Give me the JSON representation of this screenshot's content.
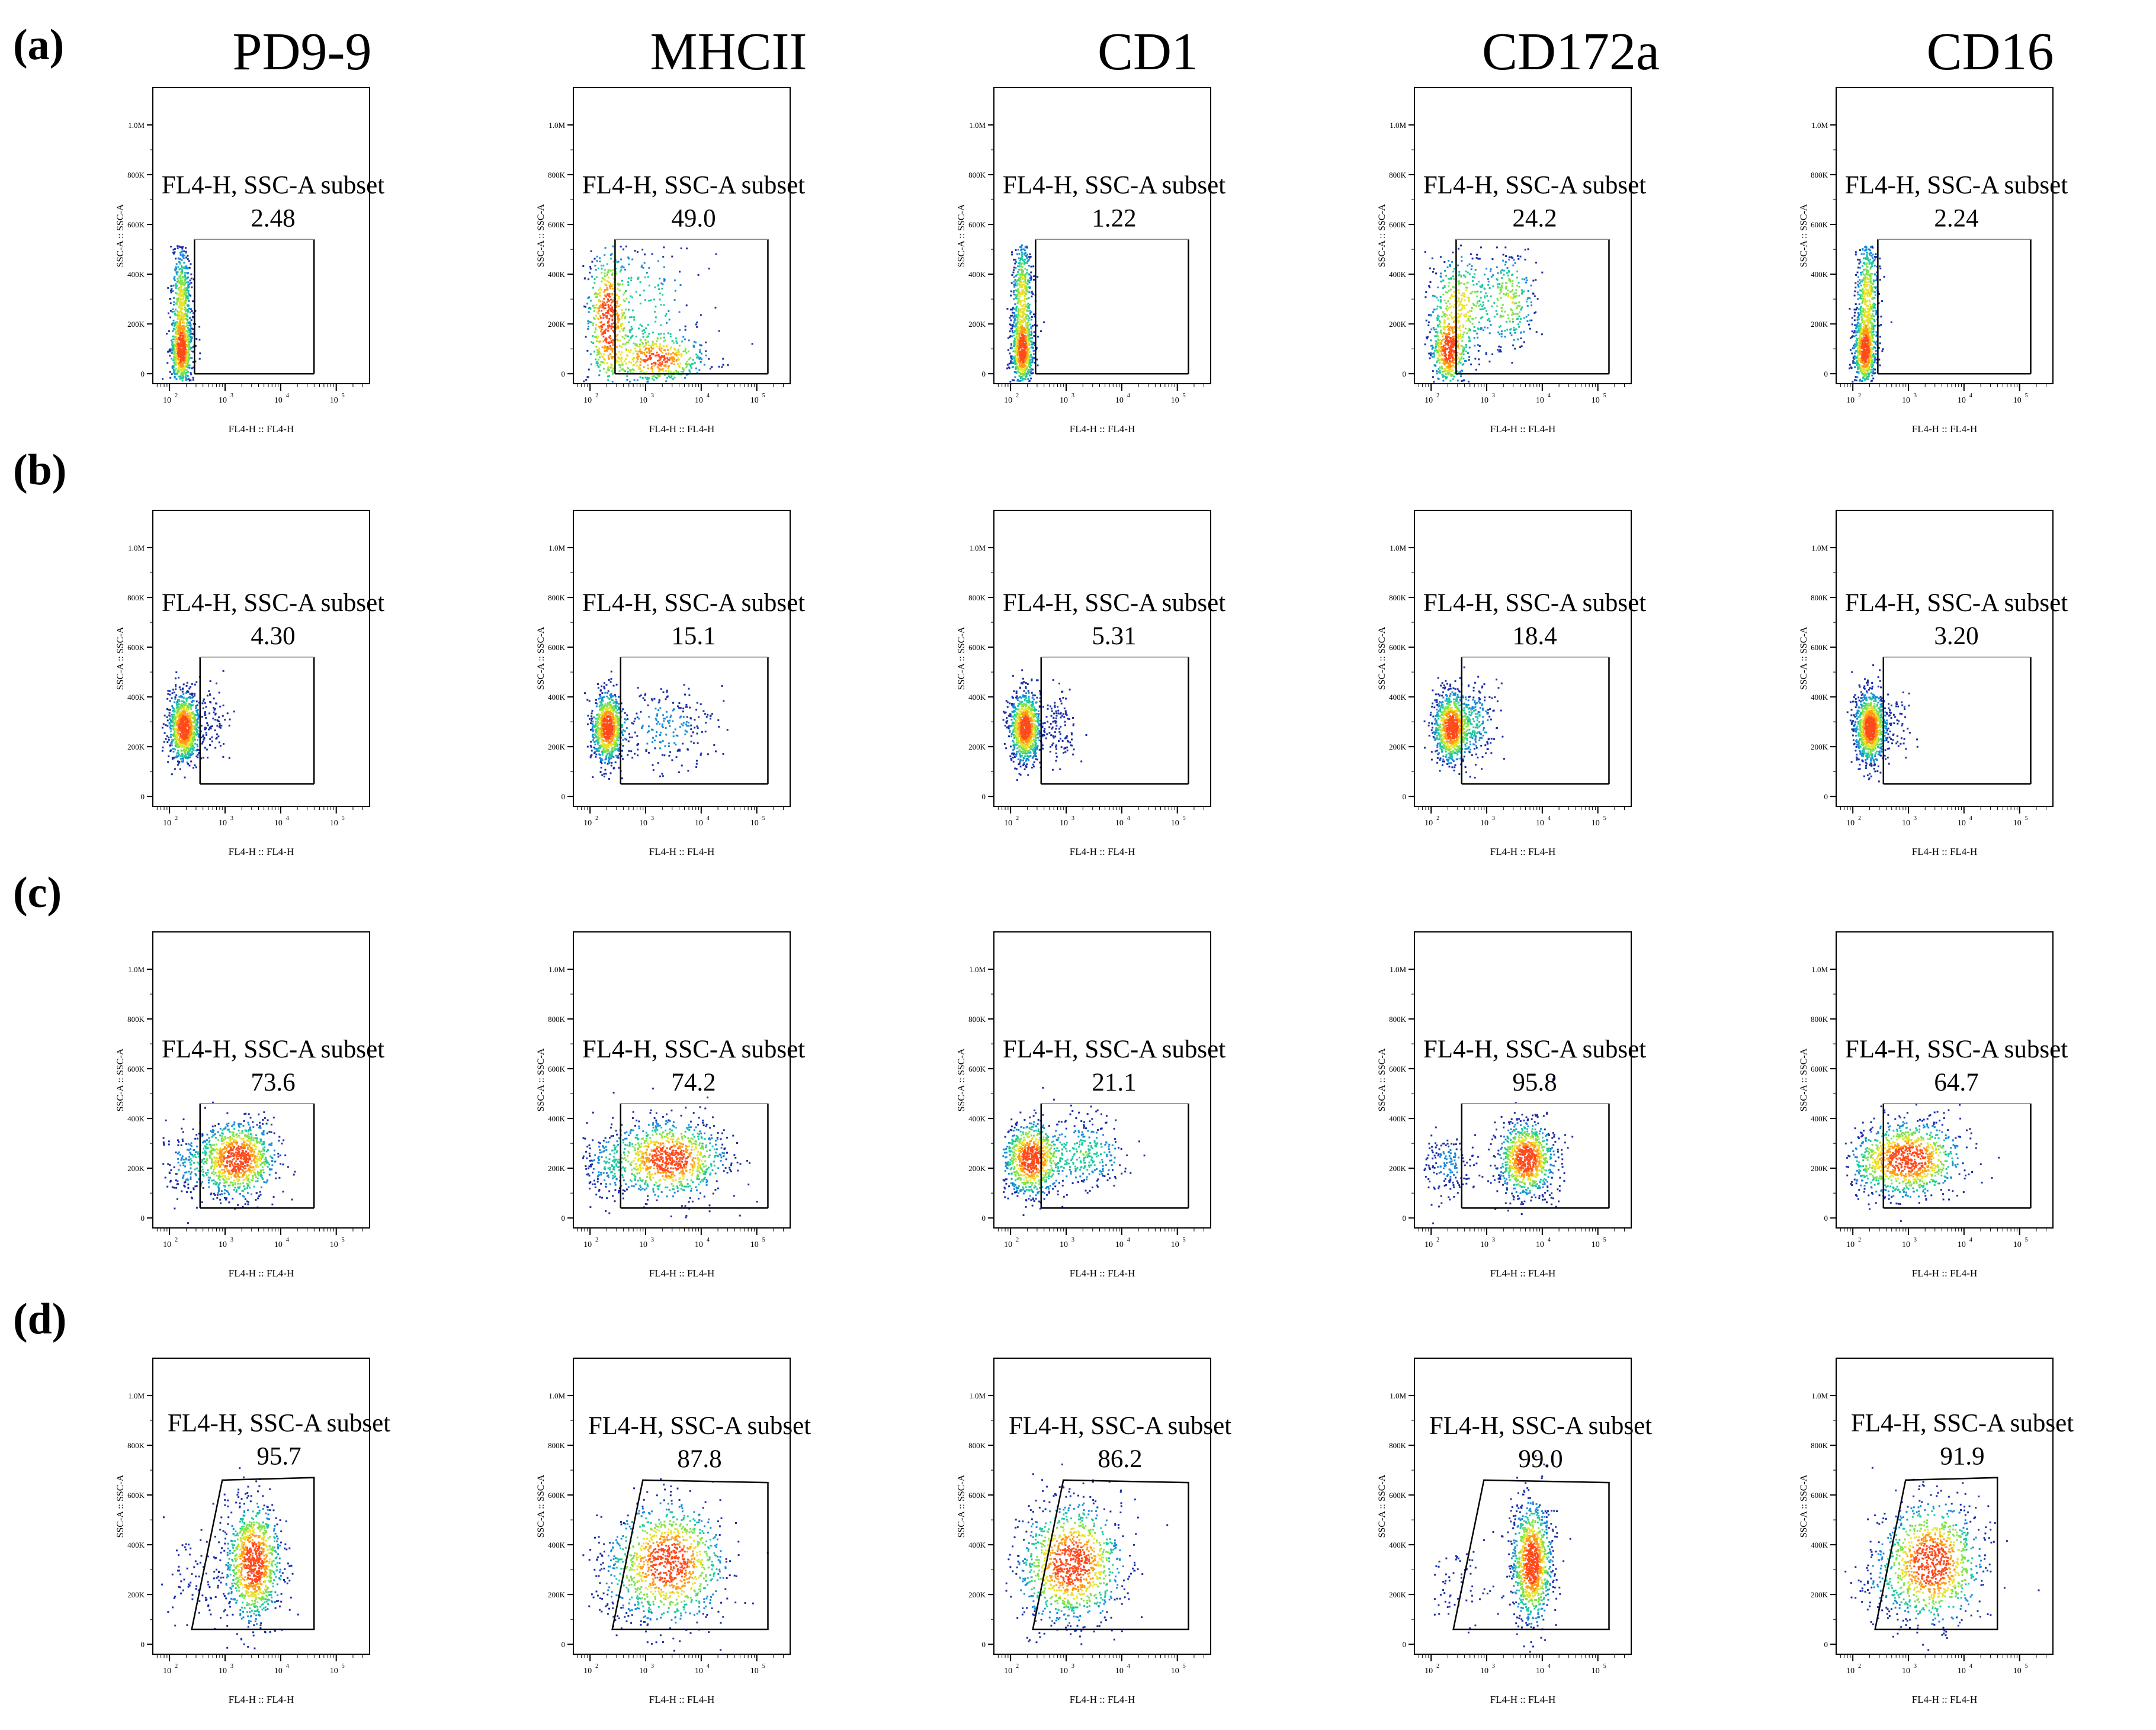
{
  "figure": {
    "markers": [
      "PD9-9",
      "MHCII",
      "CD1",
      "CD172a",
      "CD16"
    ],
    "row_labels": [
      "(a)",
      "(b)",
      "(c)",
      "(d)"
    ],
    "gate_label": "FL4-H, SSC-A subset",
    "x_axis_label": "FL4-H :: FL4-H",
    "y_axis_label": "SSC-A :: SSC-A",
    "x_ticks": [
      "10",
      "10",
      "10",
      "10"
    ],
    "x_tick_exponents": [
      "2",
      "3",
      "4",
      "5"
    ],
    "y_ticks": [
      "0",
      "200K",
      "400K",
      "600K",
      "800K",
      "1.0M"
    ]
  },
  "chart_data": [
    {
      "type": "scatter",
      "row": "(a)",
      "marker": "PD9-9",
      "gate_label": "FL4-H, SSC-A subset",
      "gate_value": "2.48",
      "xlabel": "FL4-H :: FL4-H",
      "ylabel": "SSC-A :: SSC-A",
      "xlim": [
        1.7,
        5.6
      ],
      "ylim": [
        -40000,
        1150000
      ],
      "gate": {
        "shape": "rect",
        "x": [
          2.45,
          4.6
        ],
        "y": [
          0,
          540000
        ]
      }
    },
    {
      "type": "scatter",
      "row": "(a)",
      "marker": "MHCII",
      "gate_label": "FL4-H, SSC-A subset",
      "gate_value": "49.0",
      "xlabel": "FL4-H :: FL4-H",
      "ylabel": "SSC-A :: SSC-A",
      "xlim": [
        1.7,
        5.6
      ],
      "ylim": [
        -40000,
        1150000
      ],
      "gate": {
        "shape": "rect",
        "x": [
          2.45,
          5.2
        ],
        "y": [
          0,
          540000
        ]
      }
    },
    {
      "type": "scatter",
      "row": "(a)",
      "marker": "CD1",
      "gate_label": "FL4-H, SSC-A subset",
      "gate_value": "1.22",
      "xlabel": "FL4-H :: FL4-H",
      "ylabel": "SSC-A :: SSC-A",
      "xlim": [
        1.7,
        5.6
      ],
      "ylim": [
        -40000,
        1150000
      ],
      "gate": {
        "shape": "rect",
        "x": [
          2.45,
          5.2
        ],
        "y": [
          0,
          540000
        ]
      }
    },
    {
      "type": "scatter",
      "row": "(a)",
      "marker": "CD172a",
      "gate_label": "FL4-H, SSC-A subset",
      "gate_value": "24.2",
      "xlabel": "FL4-H :: FL4-H",
      "ylabel": "SSC-A :: SSC-A",
      "xlim": [
        1.7,
        5.6
      ],
      "ylim": [
        -40000,
        1150000
      ],
      "gate": {
        "shape": "rect",
        "x": [
          2.45,
          5.2
        ],
        "y": [
          0,
          540000
        ]
      }
    },
    {
      "type": "scatter",
      "row": "(a)",
      "marker": "CD16",
      "gate_label": "FL4-H, SSC-A subset",
      "gate_value": "2.24",
      "xlabel": "FL4-H :: FL4-H",
      "ylabel": "SSC-A :: SSC-A",
      "xlim": [
        1.7,
        5.6
      ],
      "ylim": [
        -40000,
        1150000
      ],
      "gate": {
        "shape": "rect",
        "x": [
          2.45,
          5.2
        ],
        "y": [
          0,
          540000
        ]
      }
    },
    {
      "type": "scatter",
      "row": "(b)",
      "marker": "PD9-9",
      "gate_label": "FL4-H, SSC-A subset",
      "gate_value": "4.30",
      "xlabel": "FL4-H :: FL4-H",
      "ylabel": "SSC-A :: SSC-A",
      "xlim": [
        1.7,
        5.6
      ],
      "ylim": [
        -40000,
        1150000
      ],
      "gate": {
        "shape": "rect",
        "x": [
          2.55,
          4.6
        ],
        "y": [
          50000,
          560000
        ]
      }
    },
    {
      "type": "scatter",
      "row": "(b)",
      "marker": "MHCII",
      "gate_label": "FL4-H, SSC-A subset",
      "gate_value": "15.1",
      "xlabel": "FL4-H :: FL4-H",
      "ylabel": "SSC-A :: SSC-A",
      "xlim": [
        1.7,
        5.6
      ],
      "ylim": [
        -40000,
        1150000
      ],
      "gate": {
        "shape": "rect",
        "x": [
          2.55,
          5.2
        ],
        "y": [
          50000,
          560000
        ]
      }
    },
    {
      "type": "scatter",
      "row": "(b)",
      "marker": "CD1",
      "gate_label": "FL4-H, SSC-A subset",
      "gate_value": "5.31",
      "xlabel": "FL4-H :: FL4-H",
      "ylabel": "SSC-A :: SSC-A",
      "xlim": [
        1.7,
        5.6
      ],
      "ylim": [
        -40000,
        1150000
      ],
      "gate": {
        "shape": "rect",
        "x": [
          2.55,
          5.2
        ],
        "y": [
          50000,
          560000
        ]
      }
    },
    {
      "type": "scatter",
      "row": "(b)",
      "marker": "CD172a",
      "gate_label": "FL4-H, SSC-A subset",
      "gate_value": "18.4",
      "xlabel": "FL4-H :: FL4-H",
      "ylabel": "SSC-A :: SSC-A",
      "xlim": [
        1.7,
        5.6
      ],
      "ylim": [
        -40000,
        1150000
      ],
      "gate": {
        "shape": "rect",
        "x": [
          2.55,
          5.2
        ],
        "y": [
          50000,
          560000
        ]
      }
    },
    {
      "type": "scatter",
      "row": "(b)",
      "marker": "CD16",
      "gate_label": "FL4-H, SSC-A subset",
      "gate_value": "3.20",
      "xlabel": "FL4-H :: FL4-H",
      "ylabel": "SSC-A :: SSC-A",
      "xlim": [
        1.7,
        5.6
      ],
      "ylim": [
        -40000,
        1150000
      ],
      "gate": {
        "shape": "rect",
        "x": [
          2.55,
          5.2
        ],
        "y": [
          50000,
          560000
        ]
      }
    },
    {
      "type": "scatter",
      "row": "(c)",
      "marker": "PD9-9",
      "gate_label": "FL4-H, SSC-A subset",
      "gate_value": "73.6",
      "xlabel": "FL4-H :: FL4-H",
      "ylabel": "SSC-A :: SSC-A",
      "xlim": [
        1.7,
        5.6
      ],
      "ylim": [
        -40000,
        1150000
      ],
      "gate": {
        "shape": "rect",
        "x": [
          2.55,
          4.6
        ],
        "y": [
          40000,
          460000
        ]
      }
    },
    {
      "type": "scatter",
      "row": "(c)",
      "marker": "MHCII",
      "gate_label": "FL4-H, SSC-A subset",
      "gate_value": "74.2",
      "xlabel": "FL4-H :: FL4-H",
      "ylabel": "SSC-A :: SSC-A",
      "xlim": [
        1.7,
        5.6
      ],
      "ylim": [
        -40000,
        1150000
      ],
      "gate": {
        "shape": "rect",
        "x": [
          2.55,
          5.2
        ],
        "y": [
          40000,
          460000
        ]
      }
    },
    {
      "type": "scatter",
      "row": "(c)",
      "marker": "CD1",
      "gate_label": "FL4-H, SSC-A subset",
      "gate_value": "21.1",
      "xlabel": "FL4-H :: FL4-H",
      "ylabel": "SSC-A :: SSC-A",
      "xlim": [
        1.7,
        5.6
      ],
      "ylim": [
        -40000,
        1150000
      ],
      "gate": {
        "shape": "rect",
        "x": [
          2.55,
          5.2
        ],
        "y": [
          40000,
          460000
        ]
      }
    },
    {
      "type": "scatter",
      "row": "(c)",
      "marker": "CD172a",
      "gate_label": "FL4-H, SSC-A subset",
      "gate_value": "95.8",
      "xlabel": "FL4-H :: FL4-H",
      "ylabel": "SSC-A :: SSC-A",
      "xlim": [
        1.7,
        5.6
      ],
      "ylim": [
        -40000,
        1150000
      ],
      "gate": {
        "shape": "rect",
        "x": [
          2.55,
          5.2
        ],
        "y": [
          40000,
          460000
        ]
      }
    },
    {
      "type": "scatter",
      "row": "(c)",
      "marker": "CD16",
      "gate_label": "FL4-H, SSC-A subset",
      "gate_value": "64.7",
      "xlabel": "FL4-H :: FL4-H",
      "ylabel": "SSC-A :: SSC-A",
      "xlim": [
        1.7,
        5.6
      ],
      "ylim": [
        -40000,
        1150000
      ],
      "gate": {
        "shape": "rect",
        "x": [
          2.55,
          5.2
        ],
        "y": [
          40000,
          460000
        ]
      }
    },
    {
      "type": "scatter",
      "row": "(d)",
      "marker": "PD9-9",
      "gate_label": "FL4-H, SSC-A subset",
      "gate_value": "95.7",
      "xlabel": "FL4-H :: FL4-H",
      "ylabel": "SSC-A :: SSC-A",
      "xlim": [
        1.7,
        5.6
      ],
      "ylim": [
        -40000,
        1150000
      ],
      "gate": {
        "shape": "polygon",
        "points": [
          [
            2.4,
            60000
          ],
          [
            2.95,
            660000
          ],
          [
            4.6,
            670000
          ],
          [
            4.6,
            60000
          ]
        ]
      }
    },
    {
      "type": "scatter",
      "row": "(d)",
      "marker": "MHCII",
      "gate_label": "FL4-H, SSC-A subset",
      "gate_value": "87.8",
      "xlabel": "FL4-H :: FL4-H",
      "ylabel": "SSC-A :: SSC-A",
      "xlim": [
        1.7,
        5.6
      ],
      "ylim": [
        -40000,
        1150000
      ],
      "gate": {
        "shape": "polygon",
        "points": [
          [
            2.4,
            60000
          ],
          [
            2.95,
            660000
          ],
          [
            5.2,
            650000
          ],
          [
            5.2,
            60000
          ]
        ]
      }
    },
    {
      "type": "scatter",
      "row": "(d)",
      "marker": "CD1",
      "gate_label": "FL4-H, SSC-A subset",
      "gate_value": "86.2",
      "xlabel": "FL4-H :: FL4-H",
      "ylabel": "SSC-A :: SSC-A",
      "xlim": [
        1.7,
        5.6
      ],
      "ylim": [
        -40000,
        1150000
      ],
      "gate": {
        "shape": "polygon",
        "points": [
          [
            2.4,
            60000
          ],
          [
            2.95,
            660000
          ],
          [
            5.2,
            650000
          ],
          [
            5.2,
            60000
          ]
        ]
      }
    },
    {
      "type": "scatter",
      "row": "(d)",
      "marker": "CD172a",
      "gate_label": "FL4-H, SSC-A subset",
      "gate_value": "99.0",
      "xlabel": "FL4-H :: FL4-H",
      "ylabel": "SSC-A :: SSC-A",
      "xlim": [
        1.7,
        5.6
      ],
      "ylim": [
        -40000,
        1150000
      ],
      "gate": {
        "shape": "polygon",
        "points": [
          [
            2.4,
            60000
          ],
          [
            2.95,
            660000
          ],
          [
            5.2,
            650000
          ],
          [
            5.2,
            60000
          ]
        ]
      }
    },
    {
      "type": "scatter",
      "row": "(d)",
      "marker": "CD16",
      "gate_label": "FL4-H, SSC-A subset",
      "gate_value": "91.9",
      "xlabel": "FL4-H :: FL4-H",
      "ylabel": "SSC-A :: SSC-A",
      "xlim": [
        1.7,
        5.6
      ],
      "ylim": [
        -40000,
        1150000
      ],
      "gate": {
        "shape": "polygon",
        "points": [
          [
            2.4,
            60000
          ],
          [
            2.95,
            660000
          ],
          [
            4.6,
            670000
          ],
          [
            4.6,
            60000
          ]
        ]
      }
    }
  ],
  "density_clusters": [
    [
      {
        "x": 2.2,
        "y": 90000,
        "sx": 0.1,
        "sy": 70000,
        "w": 0.6
      },
      {
        "x": 2.2,
        "y": 290000,
        "sx": 0.09,
        "sy": 120000,
        "w": 0.4
      }
    ],
    [
      {
        "x": 2.3,
        "y": 220000,
        "sx": 0.18,
        "sy": 140000,
        "w": 0.45
      },
      {
        "x": 3.2,
        "y": 60000,
        "sx": 0.45,
        "sy": 50000,
        "w": 0.4
      },
      {
        "x": 3.0,
        "y": 280000,
        "sx": 0.5,
        "sy": 150000,
        "w": 0.15
      }
    ],
    [
      {
        "x": 2.2,
        "y": 90000,
        "sx": 0.1,
        "sy": 70000,
        "w": 0.6
      },
      {
        "x": 2.2,
        "y": 320000,
        "sx": 0.09,
        "sy": 120000,
        "w": 0.4
      }
    ],
    [
      {
        "x": 2.3,
        "y": 90000,
        "sx": 0.15,
        "sy": 70000,
        "w": 0.45
      },
      {
        "x": 2.5,
        "y": 280000,
        "sx": 0.3,
        "sy": 110000,
        "w": 0.3
      },
      {
        "x": 3.4,
        "y": 300000,
        "sx": 0.25,
        "sy": 100000,
        "w": 0.25
      }
    ],
    [
      {
        "x": 2.2,
        "y": 90000,
        "sx": 0.1,
        "sy": 70000,
        "w": 0.6
      },
      {
        "x": 2.25,
        "y": 320000,
        "sx": 0.1,
        "sy": 120000,
        "w": 0.4
      }
    ],
    [
      {
        "x": 2.25,
        "y": 280000,
        "sx": 0.14,
        "sy": 70000,
        "w": 0.93
      },
      {
        "x": 2.8,
        "y": 300000,
        "sx": 0.15,
        "sy": 70000,
        "w": 0.07
      }
    ],
    [
      {
        "x": 2.3,
        "y": 280000,
        "sx": 0.14,
        "sy": 70000,
        "w": 0.82
      },
      {
        "x": 3.3,
        "y": 280000,
        "sx": 0.45,
        "sy": 80000,
        "w": 0.18
      }
    ],
    [
      {
        "x": 2.25,
        "y": 280000,
        "sx": 0.14,
        "sy": 70000,
        "w": 0.9
      },
      {
        "x": 2.85,
        "y": 290000,
        "sx": 0.15,
        "sy": 70000,
        "w": 0.1
      }
    ],
    [
      {
        "x": 2.35,
        "y": 280000,
        "sx": 0.16,
        "sy": 70000,
        "w": 0.8
      },
      {
        "x": 2.8,
        "y": 300000,
        "sx": 0.18,
        "sy": 80000,
        "w": 0.2
      }
    ],
    [
      {
        "x": 2.3,
        "y": 280000,
        "sx": 0.14,
        "sy": 70000,
        "w": 0.94
      },
      {
        "x": 2.8,
        "y": 300000,
        "sx": 0.15,
        "sy": 70000,
        "w": 0.06
      }
    ]
  ]
}
